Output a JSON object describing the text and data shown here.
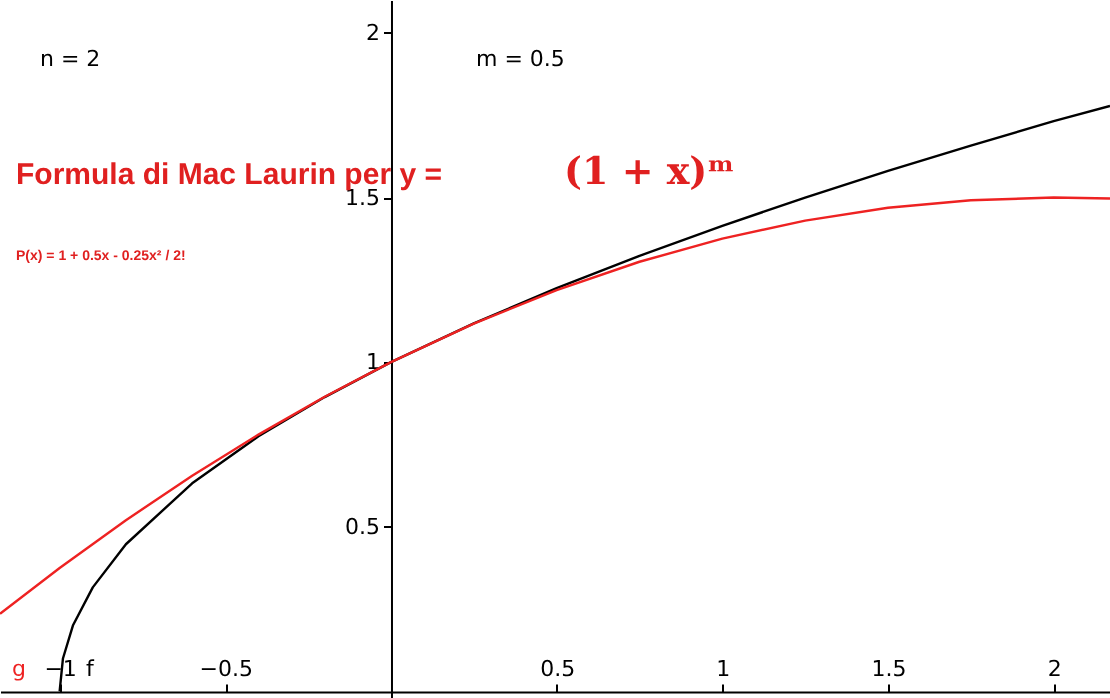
{
  "chart_data": {
    "type": "line",
    "xlim": [
      -1.18,
      2.17
    ],
    "ylim": [
      -0.02,
      2.1
    ],
    "xticks": [
      -1,
      -0.5,
      0.5,
      1,
      1.5,
      2
    ],
    "yticks": [
      0.5,
      1,
      1.5,
      2
    ],
    "grid": false,
    "marker": "none",
    "line_style": "solid",
    "series": [
      {
        "name": "f",
        "color": "#000000",
        "x": [
          -1,
          -0.99,
          -0.96,
          -0.9,
          -0.8,
          -0.6,
          -0.4,
          -0.2,
          0,
          0.25,
          0.5,
          0.75,
          1,
          1.25,
          1.5,
          1.75,
          2,
          2.17
        ],
        "values": [
          0,
          0.1,
          0.2,
          0.316,
          0.447,
          0.632,
          0.775,
          0.894,
          1,
          1.118,
          1.225,
          1.323,
          1.414,
          1.5,
          1.581,
          1.658,
          1.732,
          1.778
        ]
      },
      {
        "name": "g",
        "color": "#ee2222",
        "x": [
          -1.18,
          -1,
          -0.8,
          -0.6,
          -0.4,
          -0.2,
          0,
          0.25,
          0.5,
          0.75,
          1,
          1.25,
          1.5,
          1.75,
          2,
          2.17
        ],
        "values": [
          0.236,
          0.375,
          0.52,
          0.655,
          0.78,
          0.895,
          1,
          1.117,
          1.219,
          1.305,
          1.375,
          1.43,
          1.469,
          1.492,
          1.5,
          1.497
        ]
      }
    ],
    "annotations": [
      "n = 2",
      "m = 0.5",
      "Formula di Mac Laurin per y =",
      "(1 + x)ᵐ",
      "P(x) = 1 + 0.5x - 0.25x² / 2!"
    ]
  }
}
